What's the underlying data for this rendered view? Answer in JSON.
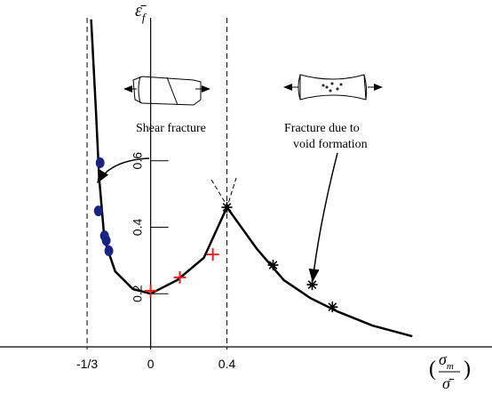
{
  "chart_data": {
    "type": "line",
    "y_label": {
      "symbol": "ε̄",
      "subscript": "f"
    },
    "x_label": {
      "open": "(",
      "numerator_symbol": "σ",
      "numerator_subscript": "m",
      "denominator": "σ̄",
      "close": ")"
    },
    "annotations": [
      "Shear fracture",
      "Fracture due to",
      "void formation"
    ],
    "xlim": [
      -0.79,
      1.79
    ],
    "ylim": [
      0.04,
      1.03
    ],
    "xticks": [
      {
        "value": -0.3333,
        "label": "-1/3"
      },
      0,
      0.4
    ],
    "yticks": [
      0.2,
      0.4,
      0.6
    ],
    "dashed_lines": [
      -0.3333,
      0.4
    ],
    "series": [
      {
        "marker": "line",
        "color": "#000000",
        "x": [
          -0.312,
          -0.288,
          -0.27,
          -0.242,
          -0.186,
          -0.093,
          0,
          0.14,
          0.279,
          0.4,
          0.558,
          0.698,
          0.837,
          0.977,
          1.163,
          1.372
        ],
        "values": [
          1.025,
          0.762,
          0.548,
          0.361,
          0.267,
          0.214,
          0.2,
          0.241,
          0.308,
          0.46,
          0.334,
          0.241,
          0.187,
          0.147,
          0.104,
          0.072
        ]
      },
      {
        "marker": "circle",
        "color": "#1a237e",
        "x": [
          -0.265,
          -0.274,
          -0.242,
          -0.233,
          -0.219
        ],
        "values": [
          0.594,
          0.449,
          0.374,
          0.36,
          0.329
        ]
      },
      {
        "marker": "plus",
        "color": "#e02020",
        "x": [
          0,
          0.153,
          0.326
        ],
        "values": [
          0.209,
          0.249,
          0.318
        ]
      },
      {
        "marker": "star",
        "color": "#000000",
        "x": [
          0.4,
          0.642,
          0.847,
          0.953
        ],
        "values": [
          0.46,
          0.286,
          0.227,
          0.16
        ]
      }
    ]
  }
}
